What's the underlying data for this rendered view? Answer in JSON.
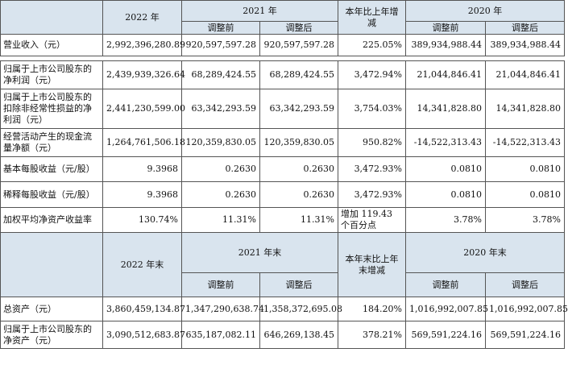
{
  "header1": {
    "y2022": "2022 年",
    "y2021": "2021 年",
    "change": "本年比上年增减",
    "y2020": "2020 年",
    "before": "调整前",
    "after": "调整后"
  },
  "rows1": [
    {
      "label": "营业收入（元）",
      "v2022": "2,992,396,280.89",
      "v2021b": "920,597,597.28",
      "v2021a": "920,597,597.28",
      "chg": "225.05%",
      "v2020b": "389,934,988.44",
      "v2020a": "389,934,988.44"
    },
    {
      "label": "归属于上市公司股东的净利润（元）",
      "v2022": "2,439,939,326.64",
      "v2021b": "68,289,424.55",
      "v2021a": "68,289,424.55",
      "chg": "3,472.94%",
      "v2020b": "21,044,846.41",
      "v2020a": "21,044,846.41"
    },
    {
      "label": "归属于上市公司股东的扣除非经常性损益的净利润（元）",
      "v2022": "2,441,230,599.00",
      "v2021b": "63,342,293.59",
      "v2021a": "63,342,293.59",
      "chg": "3,754.03%",
      "v2020b": "14,341,828.80",
      "v2020a": "14,341,828.80"
    },
    {
      "label": "经营活动产生的现金流量净额（元）",
      "v2022": "1,264,761,506.18",
      "v2021b": "120,359,830.05",
      "v2021a": "120,359,830.05",
      "chg": "950.82%",
      "v2020b": "-14,522,313.43",
      "v2020a": "-14,522,313.43"
    },
    {
      "label": "基本每股收益（元/股）",
      "v2022": "9.3968",
      "v2021b": "0.2630",
      "v2021a": "0.2630",
      "chg": "3,472.93%",
      "v2020b": "0.0810",
      "v2020a": "0.0810"
    },
    {
      "label": "稀释每股收益（元/股）",
      "v2022": "9.3968",
      "v2021b": "0.2630",
      "v2021a": "0.2630",
      "chg": "3,472.93%",
      "v2020b": "0.0810",
      "v2020a": "0.0810"
    },
    {
      "label": "加权平均净资产收益率",
      "v2022": "130.74%",
      "v2021b": "11.31%",
      "v2021a": "11.31%",
      "chg": "增加 119.43 个百分点",
      "v2020b": "3.78%",
      "v2020a": "3.78%"
    }
  ],
  "header2": {
    "y2022": "2022 年末",
    "y2021": "2021 年末",
    "change": "本年末比上年末增减",
    "y2020": "2020 年末",
    "before": "调整前",
    "after": "调整后"
  },
  "rows2": [
    {
      "label": "总资产（元）",
      "v2022": "3,860,459,134.87",
      "v2021b": "1,347,290,638.74",
      "v2021a": "1,358,372,695.08",
      "chg": "184.20%",
      "v2020b": "1,016,992,007.85",
      "v2020a": "1,016,992,007.85"
    },
    {
      "label": "归属于上市公司股东的净资产（元）",
      "v2022": "3,090,512,683.87",
      "v2021b": "635,187,082.11",
      "v2021a": "646,269,138.45",
      "chg": "378.21%",
      "v2020b": "569,591,224.16",
      "v2020a": "569,591,224.16"
    }
  ]
}
